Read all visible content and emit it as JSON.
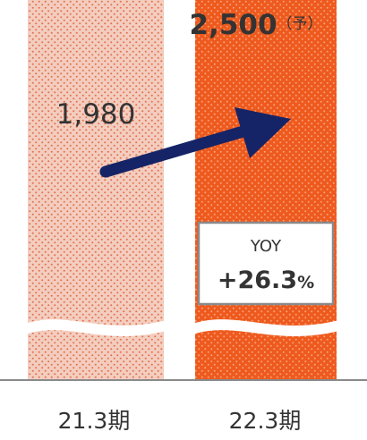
{
  "chart_data": {
    "type": "bar",
    "categories": [
      "21.3期",
      "22.3期"
    ],
    "values": [
      1980,
      2500
    ],
    "value_labels": [
      "1,980",
      "2,500"
    ],
    "forecast_suffix": "（予）",
    "yoy": {
      "label": "YOY",
      "value": "+26.3",
      "unit": "%"
    },
    "axis_broken": true,
    "colors": {
      "bar_prior": "#f3cdbf",
      "bar_current": "#ee5a1e",
      "dots_prior": "#e2734f",
      "dots_current": "#f7a27c",
      "arrow": "#152466",
      "box_border": "#8a8a8a",
      "baseline": "#8a8a8a",
      "text": "#333333"
    }
  }
}
